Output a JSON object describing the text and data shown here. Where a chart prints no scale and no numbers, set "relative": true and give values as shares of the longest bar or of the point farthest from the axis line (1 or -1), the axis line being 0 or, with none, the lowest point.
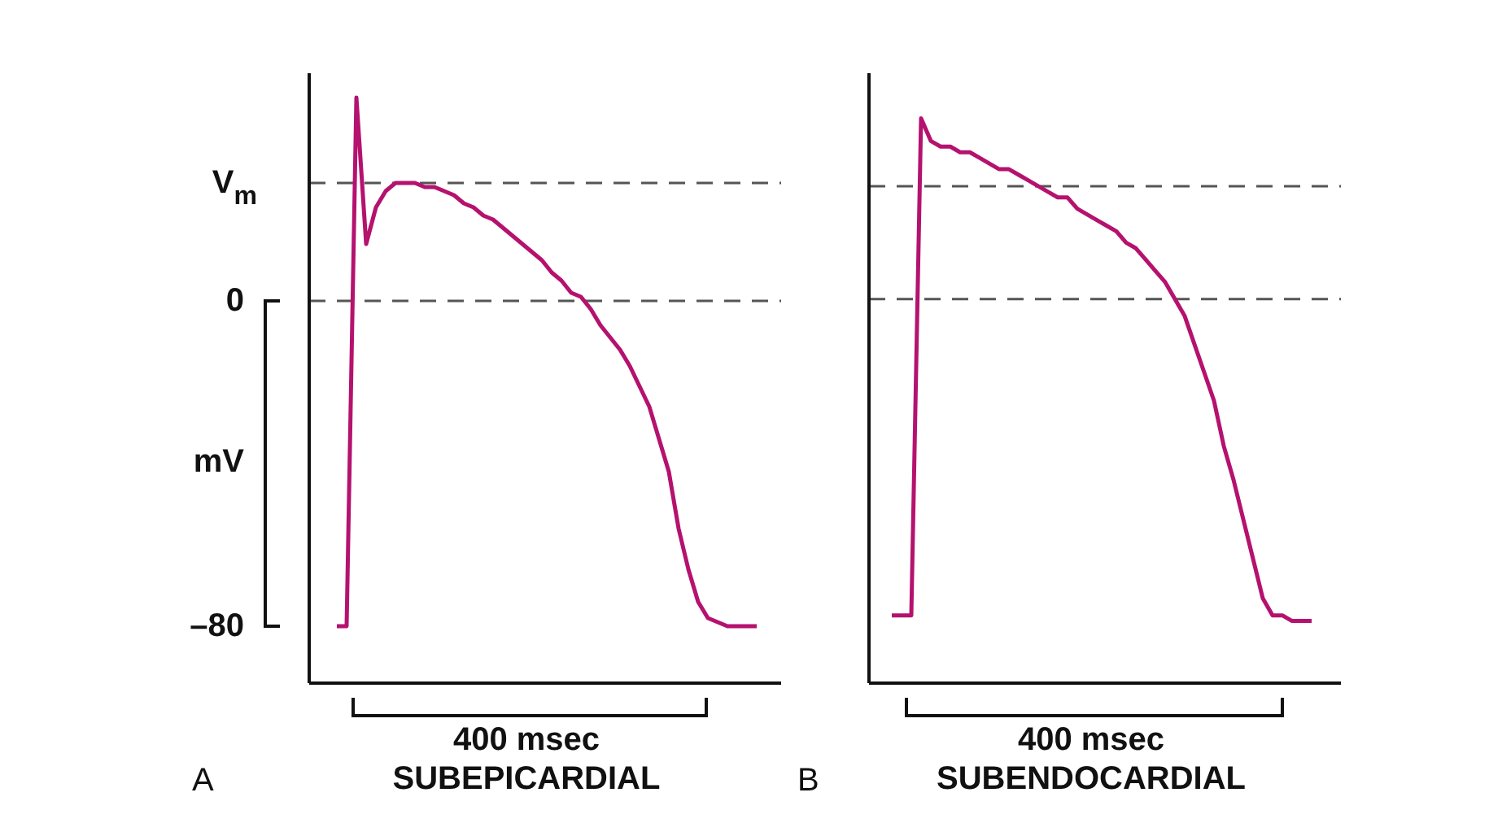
{
  "chart_data": [
    {
      "type": "line",
      "title": "SUBEPICARDIAL",
      "ylabel": "mV",
      "annotations": [
        "400 msec",
        "A"
      ],
      "ylim": [
        -94,
        56
      ],
      "yticks": [
        0,
        {
          "value": -80,
          "label": "–80"
        }
      ],
      "tick_labels": "y",
      "categories": [
        null,
        null,
        null,
        null,
        null,
        null,
        null,
        null,
        null,
        null,
        null,
        null,
        null,
        null,
        null,
        null,
        null,
        null,
        null,
        null,
        null,
        null,
        null,
        null,
        null,
        null,
        null,
        null,
        null,
        null,
        null,
        null,
        null,
        null,
        null,
        null,
        null,
        null,
        null,
        null,
        null,
        null,
        null,
        null
      ],
      "ref_lines": [
        {
          "axis": "y",
          "value": 29,
          "label": "V$_{m}$",
          "color": "#555555",
          "line_style": "dashed"
        },
        {
          "axis": "y",
          "value": 0,
          "color": "#555555",
          "line_style": "dashed"
        }
      ],
      "series": [
        {
          "color": "#b5126f",
          "values": [
            -80,
            -80,
            50,
            14,
            23,
            27,
            29,
            29,
            29,
            28,
            28,
            27,
            26,
            24,
            23,
            21,
            20,
            18,
            16,
            14,
            12,
            10,
            7,
            5,
            2,
            1,
            -2,
            -6,
            -9,
            -12,
            -16,
            -21,
            -26,
            -34,
            -42,
            -56,
            -66,
            -74,
            -78,
            -79,
            -80,
            -80,
            -80,
            -80
          ]
        }
      ]
    },
    {
      "type": "line",
      "title": "SUBENDOCARDIAL",
      "annotations": [
        "400 msec",
        "B"
      ],
      "relative": true,
      "tick_labels": false,
      "categories": [
        null,
        null,
        null,
        null,
        null,
        null,
        null,
        null,
        null,
        null,
        null,
        null,
        null,
        null,
        null,
        null,
        null,
        null,
        null,
        null,
        null,
        null,
        null,
        null,
        null,
        null,
        null,
        null,
        null,
        null,
        null,
        null,
        null,
        null,
        null,
        null,
        null,
        null,
        null,
        null,
        null,
        null,
        null,
        null
      ],
      "ref_lines": [
        {
          "axis": "y",
          "value": 0.88,
          "color": "#555555",
          "line_style": "dashed"
        },
        {
          "axis": "y",
          "value": 0.68,
          "color": "#555555",
          "line_style": "dashed"
        }
      ],
      "series": [
        {
          "color": "#b5126f",
          "values": [
            0.12,
            0.12,
            0.12,
            1,
            0.96,
            0.95,
            0.95,
            0.94,
            0.94,
            0.93,
            0.92,
            0.91,
            0.91,
            0.9,
            0.89,
            0.88,
            0.87,
            0.86,
            0.86,
            0.84,
            0.83,
            0.82,
            0.81,
            0.8,
            0.78,
            0.77,
            0.75,
            0.73,
            0.71,
            0.68,
            0.65,
            0.6,
            0.55,
            0.5,
            0.42,
            0.36,
            0.29,
            0.22,
            0.15,
            0.12,
            0.12,
            0.11,
            0.11,
            0.11
          ]
        }
      ]
    }
  ]
}
